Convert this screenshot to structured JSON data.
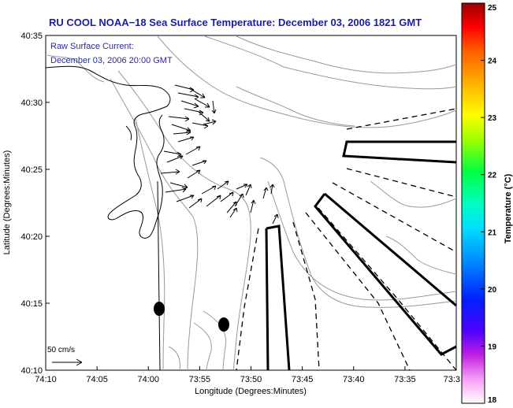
{
  "title": "RU COOL  NOAA−18  Sea Surface Temperature:  December 03, 2006 1821 GMT",
  "current_label": "Raw Surface Current:",
  "current_time": "December 03, 2006 20:00 GMT",
  "scale_label": "50 cm/s",
  "x_axis_label": "Longitude (Degrees:Minutes)",
  "y_axis_label": "Latitude (Degrees:Minutes)",
  "colorbar_label": "Temperature (°C)",
  "x_ticks": [
    "74:10",
    "74:05",
    "74:00",
    "73:55",
    "73:50",
    "73:45",
    "73:40",
    "73:35",
    "73:3"
  ],
  "y_ticks": [
    "40:35",
    "40:30",
    "40:25",
    "40:20",
    "40:15",
    "40:10"
  ],
  "colorbar_ticks": [
    "25",
    "24",
    "23",
    "22",
    "21",
    "20",
    "19",
    "18"
  ],
  "colorbar_range": [
    18,
    25
  ],
  "colors": {
    "title": "#1c1c9c",
    "annotation": "#2a2aa0",
    "coastline": "#000000",
    "bathymetry": "#9a9a9a",
    "vectors": "#000000"
  },
  "chart_data": {
    "type": "map",
    "lon_range": [
      "74:10",
      "73:3"
    ],
    "lat_range": [
      "40:10",
      "40:35"
    ],
    "colorbar": {
      "min": 18,
      "max": 25,
      "unit": "°C"
    },
    "layers": [
      "coastline",
      "bathymetry contours",
      "surface current vectors",
      "survey boxes",
      "dashed radial lines"
    ]
  }
}
